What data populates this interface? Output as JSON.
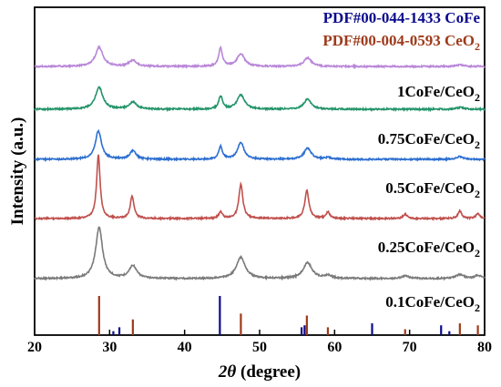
{
  "chart_data": {
    "type": "line",
    "xlabel_symbol": "2θ",
    "xlabel_rest": " (degree)",
    "ylabel": "Intensity (a.u.)",
    "xlim": [
      20,
      80
    ],
    "xticks": [
      20,
      30,
      40,
      50,
      60,
      70,
      80
    ],
    "legend": [
      {
        "prefix": "PDF#00-044-1433 CoFe",
        "subscript": "",
        "color": "#0a0a8c"
      },
      {
        "prefix": "PDF#00-004-0593 CeO",
        "subscript": "2",
        "color": "#9e3a1a"
      }
    ],
    "series": [
      {
        "label": "0.1CoFe/CeO",
        "label_sub": "2",
        "color": "#7a7a7a",
        "peaks": [
          [
            28.6,
            1.0,
            0.55
          ],
          [
            33.1,
            0.25,
            0.6
          ],
          [
            47.5,
            0.42,
            0.7
          ],
          [
            56.4,
            0.31,
            0.7
          ],
          [
            59.1,
            0.06,
            0.6
          ],
          [
            69.4,
            0.05,
            0.6
          ],
          [
            76.7,
            0.08,
            0.6
          ],
          [
            79.1,
            0.06,
            0.6
          ]
        ]
      },
      {
        "label": "0.25CoFe/CeO",
        "label_sub": "2",
        "color": "#c0504d",
        "peaks": [
          [
            28.5,
            1.0,
            0.28
          ],
          [
            33.0,
            0.35,
            0.3
          ],
          [
            44.8,
            0.1,
            0.3
          ],
          [
            47.5,
            0.54,
            0.32
          ],
          [
            56.3,
            0.44,
            0.33
          ],
          [
            59.1,
            0.1,
            0.3
          ],
          [
            69.4,
            0.07,
            0.3
          ],
          [
            76.7,
            0.12,
            0.3
          ],
          [
            79.1,
            0.08,
            0.3
          ]
        ]
      },
      {
        "label": "0.5CoFe/CeO",
        "label_sub": "2",
        "color": "#2d6fd0",
        "peaks": [
          [
            28.5,
            1.0,
            0.5
          ],
          [
            33.1,
            0.3,
            0.5
          ],
          [
            44.8,
            0.45,
            0.3
          ],
          [
            47.5,
            0.6,
            0.5
          ],
          [
            56.4,
            0.4,
            0.55
          ],
          [
            59.1,
            0.06,
            0.5
          ],
          [
            76.7,
            0.1,
            0.5
          ]
        ]
      },
      {
        "label": "0.75CoFe/CeO",
        "label_sub": "2",
        "color": "#23946a",
        "peaks": [
          [
            28.6,
            1.0,
            0.6
          ],
          [
            33.1,
            0.32,
            0.6
          ],
          [
            44.8,
            0.6,
            0.3
          ],
          [
            47.5,
            0.65,
            0.6
          ],
          [
            56.4,
            0.45,
            0.6
          ],
          [
            76.7,
            0.08,
            0.6
          ]
        ]
      },
      {
        "label": "1CoFe/CeO",
        "label_sub": "2",
        "color": "#b987d8",
        "peaks": [
          [
            28.6,
            1.0,
            0.6
          ],
          [
            33.1,
            0.32,
            0.6
          ],
          [
            44.8,
            0.95,
            0.3
          ],
          [
            47.5,
            0.65,
            0.6
          ],
          [
            56.4,
            0.45,
            0.6
          ],
          [
            76.7,
            0.08,
            0.6
          ]
        ]
      }
    ],
    "reference_lines": {
      "CoFe": [
        [
          30.5,
          0.1
        ],
        [
          31.3,
          0.2
        ],
        [
          44.7,
          1.0
        ],
        [
          55.6,
          0.2
        ],
        [
          56.0,
          0.25
        ],
        [
          65.0,
          0.3
        ],
        [
          74.2,
          0.25
        ],
        [
          75.3,
          0.1
        ]
      ],
      "CeO2": [
        [
          28.6,
          1.0
        ],
        [
          33.1,
          0.4
        ],
        [
          47.5,
          0.55
        ],
        [
          56.3,
          0.5
        ],
        [
          59.1,
          0.2
        ],
        [
          69.4,
          0.15
        ],
        [
          76.7,
          0.3
        ],
        [
          79.1,
          0.25
        ]
      ]
    }
  }
}
